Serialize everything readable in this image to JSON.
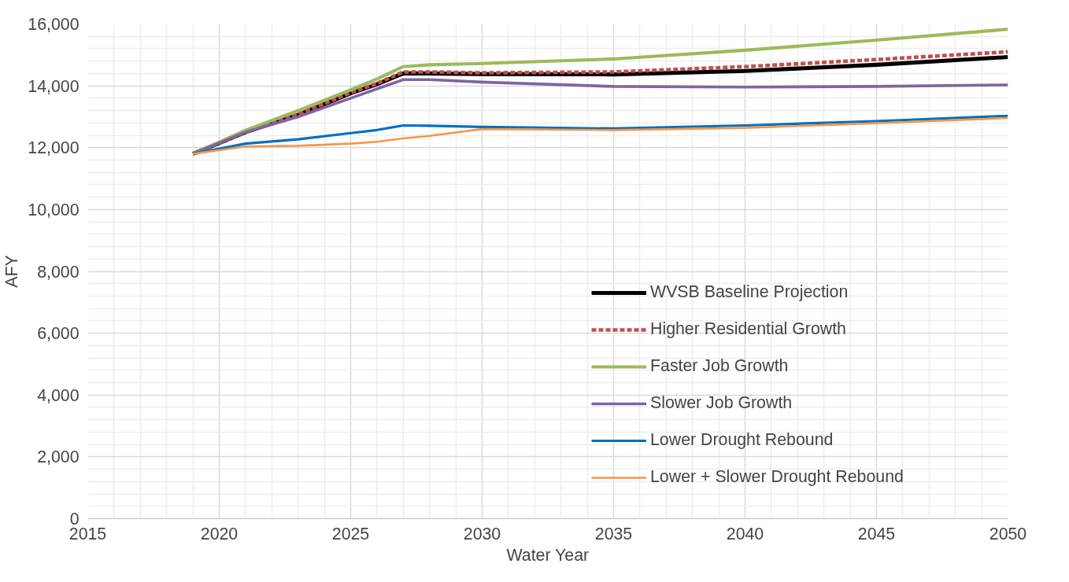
{
  "chart_data": {
    "type": "line",
    "xlabel": "Water Year",
    "ylabel": "AFY",
    "x": [
      2019,
      2021,
      2023,
      2025,
      2026,
      2027,
      2028,
      2030,
      2035,
      2040,
      2045,
      2050
    ],
    "series": [
      {
        "name": "WVSB Baseline Projection",
        "color": "#000000",
        "line_style": "solid",
        "values": [
          11800,
          12500,
          13060,
          13760,
          14050,
          14400,
          14400,
          14380,
          14370,
          14480,
          14680,
          14930
        ]
      },
      {
        "name": "Higher Residential Growth",
        "color": "#c0504d",
        "line_style": "dashed",
        "values": [
          11800,
          12500,
          13080,
          13780,
          14080,
          14450,
          14450,
          14420,
          14450,
          14620,
          14850,
          15100
        ]
      },
      {
        "name": "Faster Job Growth",
        "color": "#9bbb59",
        "line_style": "solid",
        "values": [
          11800,
          12560,
          13200,
          13870,
          14220,
          14620,
          14680,
          14720,
          14870,
          15150,
          15480,
          15830
        ]
      },
      {
        "name": "Slower Job Growth",
        "color": "#8064a2",
        "line_style": "solid",
        "values": [
          11800,
          12500,
          13000,
          13600,
          13900,
          14200,
          14200,
          14120,
          13980,
          13960,
          13980,
          14030
        ]
      },
      {
        "name": "Lower Drought Rebound",
        "color": "#0070c0",
        "line_style": "solid",
        "values": [
          11800,
          12130,
          12270,
          12470,
          12570,
          12720,
          12710,
          12670,
          12620,
          12720,
          12860,
          13030
        ]
      },
      {
        "name": "Lower + Slower Drought Rebound",
        "color": "#f79646",
        "line_style": "solid",
        "values": [
          11800,
          12040,
          12060,
          12130,
          12190,
          12300,
          12380,
          12600,
          12570,
          12640,
          12790,
          12960
        ]
      }
    ],
    "xlim": [
      2015,
      2050
    ],
    "xticks": [
      2015,
      2020,
      2025,
      2030,
      2035,
      2040,
      2045,
      2050
    ],
    "ylim": [
      0,
      16000
    ],
    "yticks": [
      0,
      {
        "value": 2000,
        "label": "2,000"
      },
      {
        "value": 4000,
        "label": "4,000"
      },
      {
        "value": 6000,
        "label": "6,000"
      },
      {
        "value": 8000,
        "label": "8,000"
      },
      {
        "value": 10000,
        "label": "10,000"
      },
      {
        "value": 12000,
        "label": "12,000"
      },
      {
        "value": 14000,
        "label": "14,000"
      },
      {
        "value": 16000,
        "label": "16,000"
      }
    ],
    "grid": true,
    "legend": "right",
    "marker": "none"
  }
}
